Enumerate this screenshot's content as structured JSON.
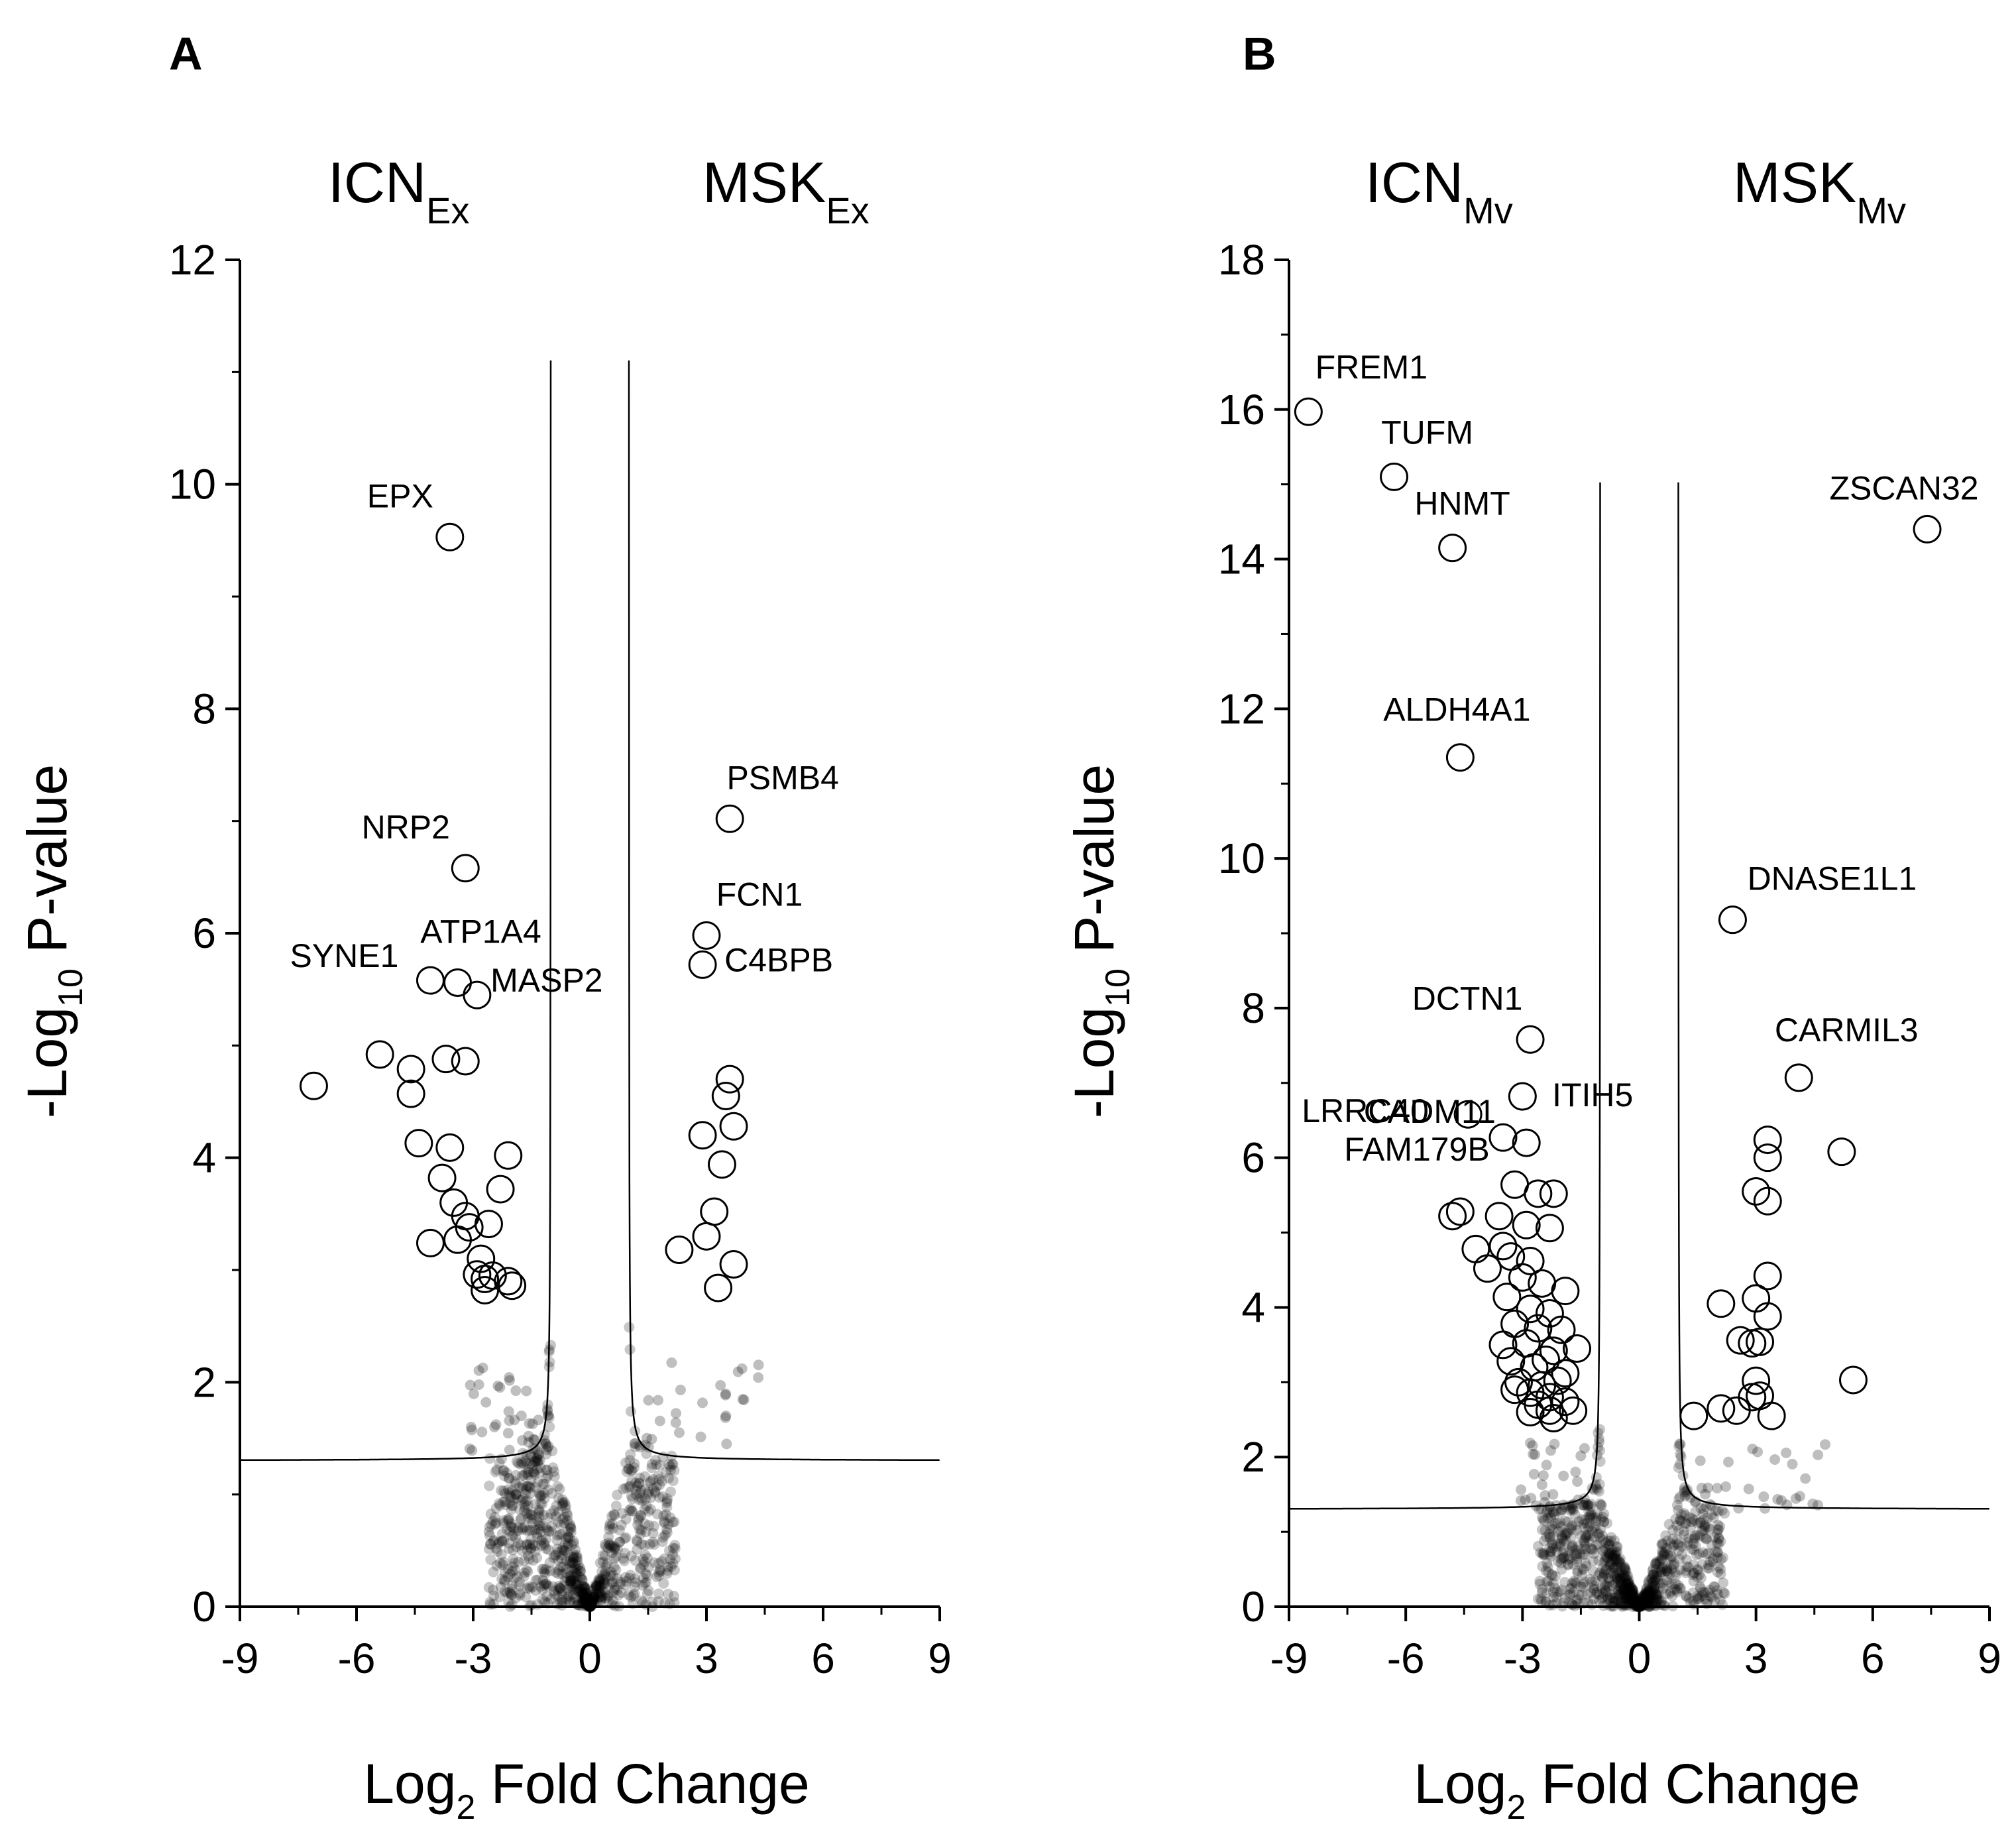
{
  "figure": {
    "panels": [
      "A",
      "B"
    ]
  },
  "chart_data": [
    {
      "panel": "A",
      "type": "scatter",
      "title": "",
      "xlabel_main": "Log",
      "xlabel_sub": "2",
      "xlabel_rest": " Fold Change",
      "ylabel_main": "-Log",
      "ylabel_sub": "10",
      "ylabel_rest": " P-value",
      "left_group": {
        "main": "ICN",
        "sub": "Ex"
      },
      "right_group": {
        "main": "MSK",
        "sub": "Ex"
      },
      "xlim": [
        -9,
        9
      ],
      "ylim": [
        0,
        12
      ],
      "xticks": [
        -9,
        -6,
        -3,
        0,
        3,
        6,
        9
      ],
      "yticks": [
        0,
        2,
        4,
        6,
        8,
        10,
        12
      ],
      "threshold": {
        "x0": 1.0,
        "y0": 1.3,
        "c": 0.05
      },
      "labeled_points": [
        {
          "label": "EPX",
          "x": -3.6,
          "y": 9.53
        },
        {
          "label": "NRP2",
          "x": -3.2,
          "y": 6.58
        },
        {
          "label": "SYNE1",
          "x": -4.1,
          "y": 5.58
        },
        {
          "label": "ATP1A4",
          "x": -3.4,
          "y": 5.56
        },
        {
          "label": "MASP2",
          "x": -2.9,
          "y": 5.45
        },
        {
          "label": "PSMB4",
          "x": 3.6,
          "y": 7.02
        },
        {
          "label": "FCN1",
          "x": 3.0,
          "y": 5.98
        },
        {
          "label": "C4BPB",
          "x": 2.9,
          "y": 5.72
        }
      ],
      "significant_points": [
        {
          "x": -7.1,
          "y": 4.64
        },
        {
          "x": -5.4,
          "y": 4.92
        },
        {
          "x": -4.6,
          "y": 4.79
        },
        {
          "x": -4.6,
          "y": 4.57
        },
        {
          "x": -4.4,
          "y": 4.13
        },
        {
          "x": -4.1,
          "y": 3.24
        },
        {
          "x": -3.8,
          "y": 3.82
        },
        {
          "x": -3.7,
          "y": 4.88
        },
        {
          "x": -3.6,
          "y": 4.09
        },
        {
          "x": -3.5,
          "y": 3.6
        },
        {
          "x": -3.4,
          "y": 3.27
        },
        {
          "x": -3.2,
          "y": 3.48
        },
        {
          "x": -3.2,
          "y": 4.86
        },
        {
          "x": -3.1,
          "y": 3.38
        },
        {
          "x": -2.9,
          "y": 2.96
        },
        {
          "x": -2.8,
          "y": 3.1
        },
        {
          "x": -2.7,
          "y": 2.92
        },
        {
          "x": -2.7,
          "y": 2.82
        },
        {
          "x": -2.6,
          "y": 3.41
        },
        {
          "x": -2.5,
          "y": 2.95
        },
        {
          "x": -2.3,
          "y": 3.72
        },
        {
          "x": -2.1,
          "y": 4.02
        },
        {
          "x": -2.1,
          "y": 2.9
        },
        {
          "x": -2.0,
          "y": 2.86
        },
        {
          "x": 3.6,
          "y": 4.7
        },
        {
          "x": 3.5,
          "y": 4.55
        },
        {
          "x": 3.7,
          "y": 4.28
        },
        {
          "x": 2.9,
          "y": 4.2
        },
        {
          "x": 3.4,
          "y": 3.94
        },
        {
          "x": 3.2,
          "y": 3.52
        },
        {
          "x": 2.3,
          "y": 3.18
        },
        {
          "x": 3.0,
          "y": 3.3
        },
        {
          "x": 3.7,
          "y": 3.05
        },
        {
          "x": 3.3,
          "y": 2.84
        }
      ]
    },
    {
      "panel": "B",
      "type": "scatter",
      "title": "",
      "xlabel_main": "Log",
      "xlabel_sub": "2",
      "xlabel_rest": " Fold Change",
      "ylabel_main": "-Log",
      "ylabel_sub": "10",
      "ylabel_rest": " P-value",
      "left_group": {
        "main": "ICN",
        "sub": "Mv"
      },
      "right_group": {
        "main": "MSK",
        "sub": "Mv"
      },
      "xlim": [
        -9,
        9
      ],
      "ylim": [
        0,
        18
      ],
      "xticks": [
        -9,
        -6,
        -3,
        0,
        3,
        6,
        9
      ],
      "yticks": [
        0,
        2,
        4,
        6,
        8,
        10,
        12,
        14,
        16,
        18
      ],
      "threshold": {
        "x0": 1.0,
        "y0": 1.3,
        "c": 0.07
      },
      "labeled_points": [
        {
          "label": "FREM1",
          "x": -8.5,
          "y": 15.97
        },
        {
          "label": "TUFM",
          "x": -6.3,
          "y": 15.1
        },
        {
          "label": "HNMT",
          "x": -4.8,
          "y": 14.15
        },
        {
          "label": "ALDH4A1",
          "x": -4.6,
          "y": 11.35
        },
        {
          "label": "ZSCAN32",
          "x": 7.4,
          "y": 14.4
        },
        {
          "label": "DNASE1L1",
          "x": 2.4,
          "y": 9.18
        },
        {
          "label": "CARMIL3",
          "x": 4.1,
          "y": 7.07
        },
        {
          "label": "DCTN1",
          "x": -2.8,
          "y": 7.58
        },
        {
          "label": "CADM11",
          "x": -3.0,
          "y": 6.82
        },
        {
          "label": "LRRC40",
          "x": -4.4,
          "y": 6.58
        },
        {
          "label": "ITIH5",
          "x": -2.9,
          "y": 6.2
        },
        {
          "label": "FAM179B",
          "x": -3.5,
          "y": 6.27
        }
      ],
      "significant_points": [
        {
          "x": -3.2,
          "y": 5.64
        },
        {
          "x": -2.6,
          "y": 5.52
        },
        {
          "x": -2.2,
          "y": 5.52
        },
        {
          "x": -4.8,
          "y": 5.22
        },
        {
          "x": -4.6,
          "y": 5.28
        },
        {
          "x": -3.6,
          "y": 5.22
        },
        {
          "x": -2.9,
          "y": 5.1
        },
        {
          "x": -2.3,
          "y": 5.06
        },
        {
          "x": -4.2,
          "y": 4.78
        },
        {
          "x": -3.5,
          "y": 4.82
        },
        {
          "x": -3.3,
          "y": 4.68
        },
        {
          "x": -2.8,
          "y": 4.62
        },
        {
          "x": -3.9,
          "y": 4.52
        },
        {
          "x": -3.0,
          "y": 4.4
        },
        {
          "x": -2.5,
          "y": 4.32
        },
        {
          "x": -1.9,
          "y": 4.22
        },
        {
          "x": -3.4,
          "y": 4.14
        },
        {
          "x": -2.8,
          "y": 3.98
        },
        {
          "x": -2.3,
          "y": 3.92
        },
        {
          "x": -3.2,
          "y": 3.78
        },
        {
          "x": -2.6,
          "y": 3.72
        },
        {
          "x": -2.0,
          "y": 3.7
        },
        {
          "x": -3.5,
          "y": 3.5
        },
        {
          "x": -2.9,
          "y": 3.52
        },
        {
          "x": -2.2,
          "y": 3.42
        },
        {
          "x": -1.6,
          "y": 3.45
        },
        {
          "x": -3.3,
          "y": 3.28
        },
        {
          "x": -2.7,
          "y": 3.2
        },
        {
          "x": -2.4,
          "y": 3.3
        },
        {
          "x": -1.9,
          "y": 3.12
        },
        {
          "x": -3.1,
          "y": 3.0
        },
        {
          "x": -2.5,
          "y": 2.96
        },
        {
          "x": -2.1,
          "y": 3.02
        },
        {
          "x": -3.2,
          "y": 2.9
        },
        {
          "x": -2.8,
          "y": 2.86
        },
        {
          "x": -2.3,
          "y": 2.8
        },
        {
          "x": -2.6,
          "y": 2.7
        },
        {
          "x": -1.9,
          "y": 2.74
        },
        {
          "x": -2.3,
          "y": 2.62
        },
        {
          "x": -2.8,
          "y": 2.6
        },
        {
          "x": -1.7,
          "y": 2.62
        },
        {
          "x": -2.2,
          "y": 2.52
        },
        {
          "x": 3.3,
          "y": 6.24
        },
        {
          "x": 3.3,
          "y": 6.0
        },
        {
          "x": 5.2,
          "y": 6.08
        },
        {
          "x": 3.0,
          "y": 5.55
        },
        {
          "x": 3.3,
          "y": 5.42
        },
        {
          "x": 2.1,
          "y": 4.05
        },
        {
          "x": 3.3,
          "y": 4.42
        },
        {
          "x": 3.0,
          "y": 4.12
        },
        {
          "x": 3.3,
          "y": 3.88
        },
        {
          "x": 2.6,
          "y": 3.56
        },
        {
          "x": 2.9,
          "y": 3.52
        },
        {
          "x": 3.1,
          "y": 3.54
        },
        {
          "x": 3.0,
          "y": 3.02
        },
        {
          "x": 2.9,
          "y": 2.8
        },
        {
          "x": 3.1,
          "y": 2.82
        },
        {
          "x": 5.5,
          "y": 3.03
        },
        {
          "x": 1.4,
          "y": 2.55
        },
        {
          "x": 2.1,
          "y": 2.65
        },
        {
          "x": 2.5,
          "y": 2.62
        },
        {
          "x": 3.4,
          "y": 2.55
        }
      ],
      "nonsignificant_note": ""
    }
  ]
}
